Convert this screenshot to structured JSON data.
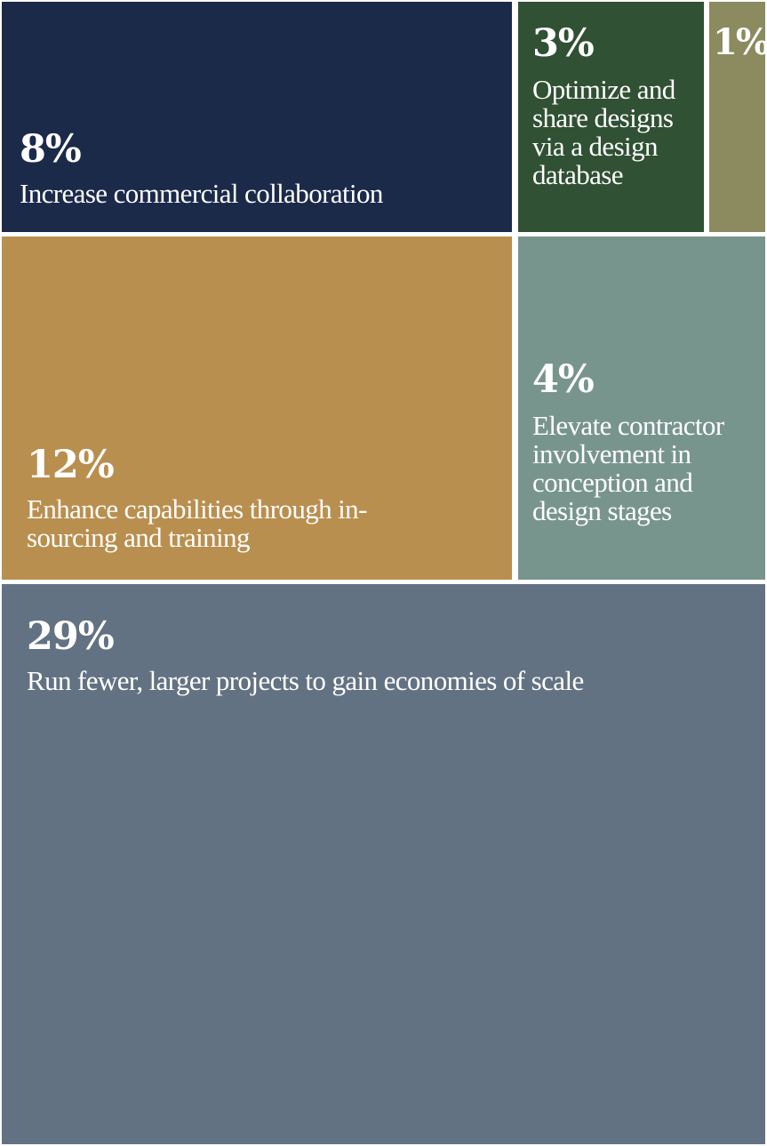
{
  "chart_data": {
    "type": "treemap",
    "items": [
      {
        "value": 8,
        "value_label": "8%",
        "label": "Increase commercial collaboration",
        "color": "#1c2a4a"
      },
      {
        "value": 3,
        "value_label": "3%",
        "label": "Optimize and share designs via a design database",
        "color": "#305133"
      },
      {
        "value": 1,
        "value_label": "1%",
        "label": "",
        "color": "#8b8b5f"
      },
      {
        "value": 12,
        "value_label": "12%",
        "label": "Enhance capabilities through in-sourcing and training",
        "color": "#b98f4f"
      },
      {
        "value": 4,
        "value_label": "4%",
        "label": "Elevate contractor involvement in conception and design stages",
        "color": "#78958d"
      },
      {
        "value": 29,
        "value_label": "29%",
        "label": "Run fewer, larger projects to gain economies of scale",
        "color": "#637283"
      }
    ]
  }
}
